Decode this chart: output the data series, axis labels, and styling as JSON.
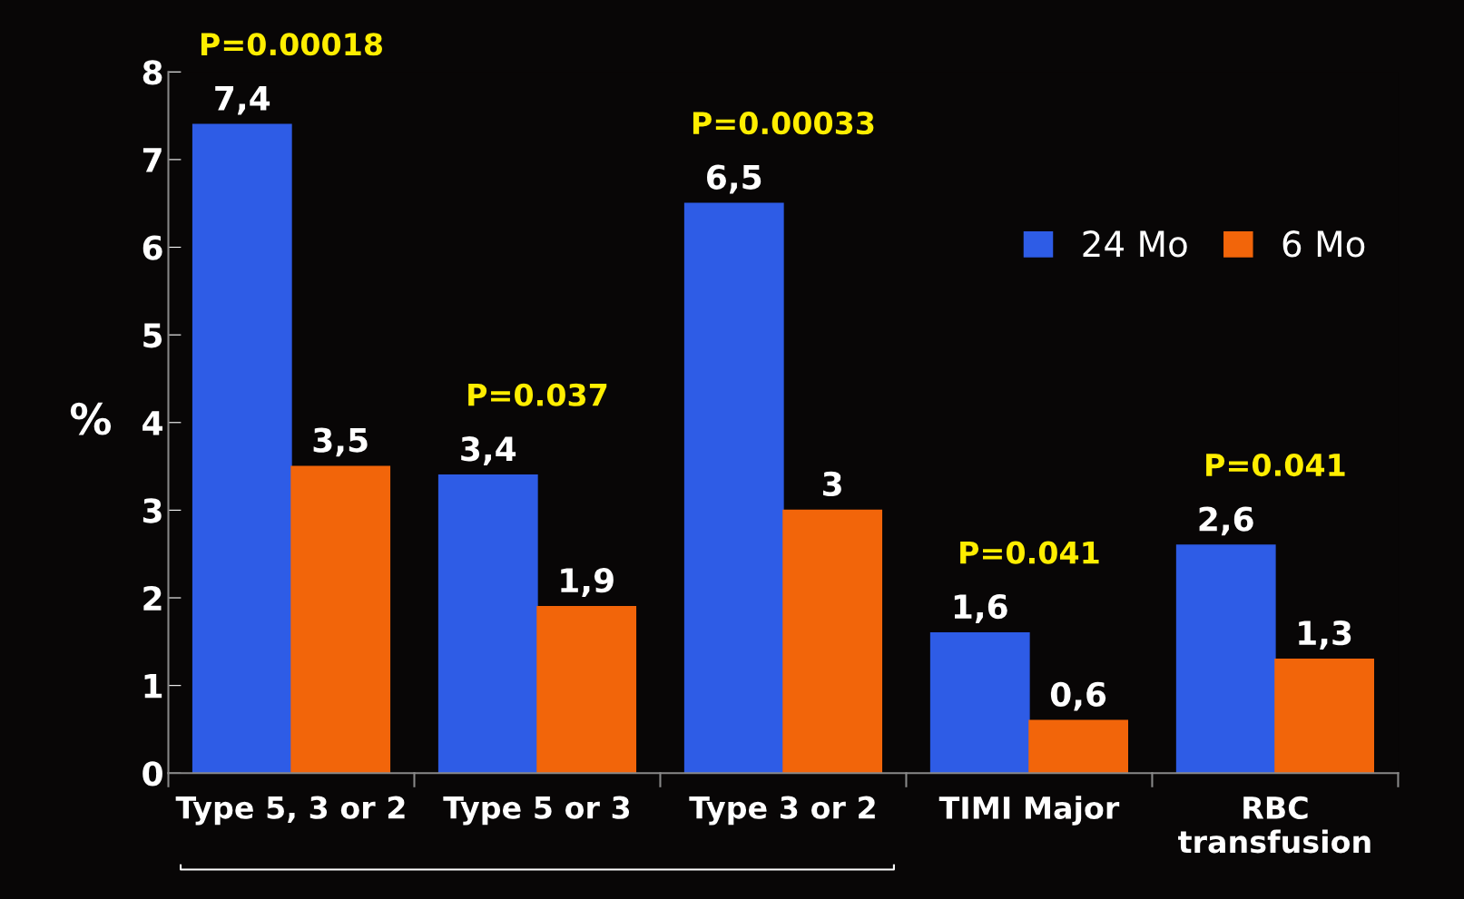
{
  "chart_data": {
    "type": "bar",
    "ylabel": "%",
    "categories": [
      "Type 5, 3 or 2",
      "Type 5 or 3",
      "Type 3 or 2",
      "TIMI Major",
      "RBC\ntransfusion"
    ],
    "series": [
      {
        "name": "24 Mo",
        "color": "#2e5ce6",
        "values": [
          7.4,
          3.4,
          6.5,
          1.6,
          2.6
        ],
        "value_labels": [
          "7,4",
          "3,4",
          "6,5",
          "1,6",
          "2,6"
        ]
      },
      {
        "name": "6 Mo",
        "color": "#f2650a",
        "values": [
          3.5,
          1.9,
          3,
          0.6,
          1.3
        ],
        "value_labels": [
          "3,5",
          "1,9",
          "3",
          "0,6",
          "1,3"
        ]
      }
    ],
    "ylim": [
      0,
      8
    ],
    "yticks": [
      0,
      1,
      2,
      3,
      4,
      5,
      6,
      7,
      8
    ],
    "grid": false,
    "legend": "top right",
    "annotations": [
      "P=0.00018",
      "P=0.037",
      "P=0.00033",
      "P=0.041",
      "P=0.041"
    ]
  }
}
